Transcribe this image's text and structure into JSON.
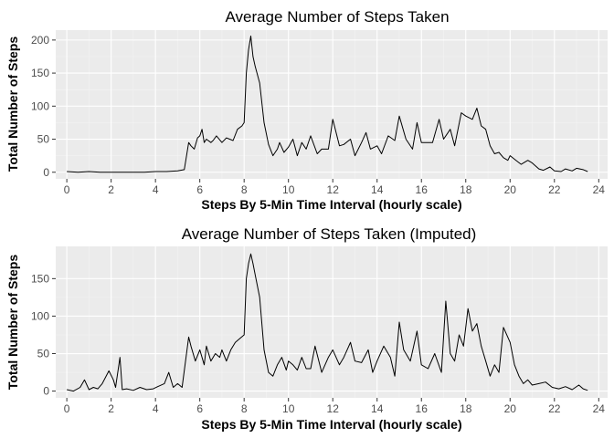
{
  "chart_data": [
    {
      "type": "line",
      "title": "Average Number of Steps Taken",
      "xlabel": "Steps By 5-Min Time Interval (hourly scale)",
      "ylabel": "Total Number of Steps",
      "xlim": [
        -0.5,
        24.4
      ],
      "ylim": [
        -10,
        215
      ],
      "x_ticks": [
        0,
        2,
        4,
        6,
        8,
        10,
        12,
        14,
        16,
        18,
        20,
        22,
        24
      ],
      "y_ticks": [
        0,
        50,
        100,
        150,
        200
      ],
      "grid": true,
      "x": [
        0,
        0.5,
        1,
        1.5,
        2,
        2.5,
        3,
        3.5,
        4,
        4.5,
        5,
        5.3,
        5.5,
        5.6,
        5.75,
        5.9,
        6.0,
        6.1,
        6.2,
        6.3,
        6.5,
        6.6,
        6.75,
        7.0,
        7.2,
        7.5,
        7.7,
        7.9,
        8.0,
        8.1,
        8.2,
        8.3,
        8.4,
        8.5,
        8.7,
        8.9,
        9.1,
        9.3,
        9.5,
        9.6,
        9.8,
        10.0,
        10.2,
        10.4,
        10.6,
        10.8,
        11.0,
        11.3,
        11.5,
        11.8,
        12.0,
        12.3,
        12.5,
        12.8,
        13.0,
        13.3,
        13.5,
        13.7,
        14.0,
        14.2,
        14.5,
        14.8,
        15.0,
        15.3,
        15.6,
        15.8,
        16.0,
        16.5,
        16.8,
        17.0,
        17.3,
        17.5,
        17.8,
        18.0,
        18.3,
        18.5,
        18.7,
        18.9,
        19.1,
        19.3,
        19.5,
        19.7,
        19.9,
        20.0,
        20.3,
        20.5,
        20.8,
        21.0,
        21.3,
        21.5,
        21.8,
        22.0,
        22.3,
        22.5,
        22.8,
        23.0,
        23.3,
        23.5
      ],
      "y": [
        1,
        0,
        1,
        0,
        0,
        0,
        0,
        0,
        1,
        1,
        2,
        4,
        45,
        40,
        35,
        52,
        55,
        65,
        45,
        50,
        45,
        48,
        55,
        45,
        52,
        48,
        65,
        70,
        75,
        150,
        185,
        206,
        175,
        160,
        135,
        75,
        42,
        25,
        35,
        45,
        30,
        38,
        50,
        25,
        45,
        35,
        55,
        28,
        35,
        35,
        80,
        40,
        42,
        50,
        25,
        45,
        60,
        35,
        40,
        28,
        55,
        48,
        85,
        50,
        35,
        75,
        45,
        45,
        80,
        50,
        65,
        40,
        90,
        85,
        80,
        97,
        70,
        65,
        40,
        28,
        30,
        22,
        18,
        25,
        17,
        12,
        18,
        14,
        5,
        3,
        8,
        2,
        1,
        5,
        2,
        6,
        4,
        1
      ]
    },
    {
      "type": "line",
      "title": "Average Number of Steps Taken (Imputed)",
      "xlabel": "Steps By 5-Min Time Interval (hourly scale)",
      "ylabel": "Total Number of Steps",
      "xlim": [
        -0.5,
        24.4
      ],
      "ylim": [
        -9,
        193
      ],
      "x_ticks": [
        0,
        2,
        4,
        6,
        8,
        10,
        12,
        14,
        16,
        18,
        20,
        22,
        24
      ],
      "y_ticks": [
        0,
        50,
        100,
        150
      ],
      "grid": true,
      "x": [
        0,
        0.3,
        0.6,
        0.8,
        1.0,
        1.2,
        1.4,
        1.6,
        1.9,
        2.1,
        2.2,
        2.4,
        2.5,
        2.7,
        3.0,
        3.3,
        3.6,
        3.9,
        4.1,
        4.4,
        4.6,
        4.8,
        5.0,
        5.2,
        5.5,
        5.6,
        5.8,
        6.0,
        6.2,
        6.3,
        6.5,
        6.7,
        6.9,
        7.0,
        7.2,
        7.4,
        7.6,
        7.8,
        8.0,
        8.1,
        8.2,
        8.3,
        8.4,
        8.5,
        8.7,
        8.9,
        9.1,
        9.3,
        9.5,
        9.7,
        9.9,
        10.0,
        10.2,
        10.4,
        10.6,
        10.8,
        11.0,
        11.2,
        11.5,
        11.8,
        12.0,
        12.3,
        12.5,
        12.8,
        13.0,
        13.3,
        13.6,
        13.8,
        14.0,
        14.3,
        14.6,
        14.8,
        15.0,
        15.2,
        15.5,
        15.8,
        16.0,
        16.3,
        16.6,
        16.9,
        17.1,
        17.3,
        17.5,
        17.7,
        17.9,
        18.1,
        18.3,
        18.5,
        18.7,
        18.9,
        19.1,
        19.3,
        19.5,
        19.7,
        20.0,
        20.2,
        20.4,
        20.6,
        20.8,
        21.0,
        21.3,
        21.6,
        21.9,
        22.2,
        22.5,
        22.8,
        23.1,
        23.3,
        23.5
      ],
      "y": [
        2,
        0,
        5,
        15,
        2,
        5,
        3,
        10,
        27,
        15,
        5,
        45,
        2,
        3,
        1,
        5,
        2,
        3,
        6,
        10,
        25,
        5,
        10,
        5,
        72,
        60,
        40,
        55,
        35,
        60,
        40,
        50,
        45,
        55,
        40,
        55,
        65,
        70,
        75,
        150,
        170,
        183,
        170,
        155,
        125,
        55,
        25,
        20,
        35,
        45,
        28,
        40,
        35,
        28,
        45,
        30,
        30,
        60,
        25,
        45,
        55,
        35,
        45,
        65,
        40,
        38,
        55,
        25,
        40,
        60,
        45,
        20,
        92,
        55,
        40,
        80,
        35,
        30,
        50,
        25,
        120,
        50,
        40,
        75,
        60,
        110,
        80,
        90,
        60,
        40,
        20,
        35,
        25,
        85,
        65,
        35,
        20,
        10,
        15,
        8,
        10,
        12,
        5,
        3,
        6,
        2,
        8,
        3,
        1
      ]
    }
  ]
}
